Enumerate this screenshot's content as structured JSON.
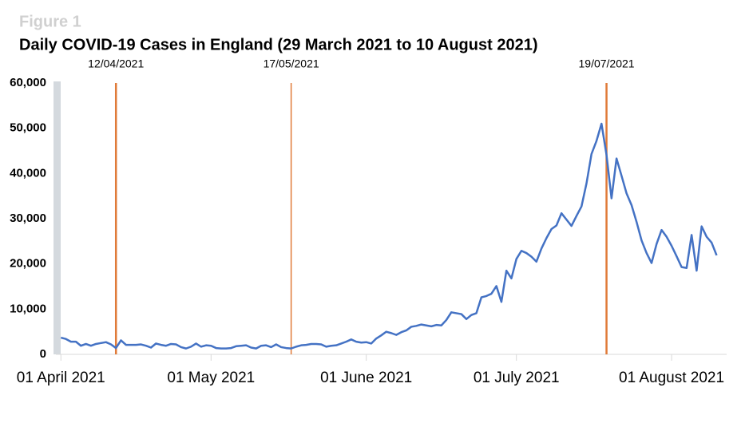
{
  "figure_label": "Figure 1",
  "chart_data": {
    "type": "line",
    "title": "Daily COVID-19 Cases in England (29 March 2021 to 10 August 2021)",
    "start": "2021-04-01",
    "series": [
      {
        "name": "Daily cases",
        "color": "#4472c4",
        "values": [
          3700,
          3400,
          2800,
          2800,
          1900,
          2300,
          1900,
          2300,
          2500,
          2700,
          2200,
          1400,
          3100,
          2100,
          2100,
          2100,
          2200,
          1900,
          1500,
          2400,
          2100,
          1900,
          2300,
          2200,
          1600,
          1300,
          1700,
          2400,
          1700,
          2000,
          1900,
          1400,
          1300,
          1300,
          1400,
          1800,
          1900,
          2000,
          1500,
          1300,
          1900,
          2000,
          1600,
          2200,
          1600,
          1400,
          1300,
          1700,
          2000,
          2100,
          2300,
          2300,
          2200,
          1700,
          1900,
          2000,
          2400,
          2800,
          3300,
          2800,
          2600,
          2700,
          2400,
          3500,
          4200,
          5000,
          4700,
          4300,
          4900,
          5300,
          6100,
          6300,
          6600,
          6400,
          6200,
          6500,
          6400,
          7600,
          9300,
          9100,
          8900,
          7800,
          8700,
          9100,
          12600,
          12900,
          13400,
          15100,
          11600,
          18500,
          16800,
          21100,
          22900,
          22400,
          21600,
          20500,
          23400,
          25700,
          27700,
          28500,
          31200,
          29800,
          28400,
          30600,
          32700,
          37800,
          44300,
          47200,
          51000,
          44100,
          34500,
          43300,
          39500,
          35600,
          33000,
          29300,
          25200,
          22400,
          20200,
          24400,
          27500,
          26000,
          24000,
          21700,
          19300,
          19100,
          26400,
          18500,
          28300,
          26000,
          24700,
          21900
        ]
      }
    ],
    "xlim": [
      "2021-03-31",
      "2021-08-12"
    ],
    "xticks": [
      {
        "value": "2021-04-01",
        "label": "01 April 2021"
      },
      {
        "value": "2021-05-01",
        "label": "01 May 2021"
      },
      {
        "value": "2021-06-01",
        "label": "01 June 2021"
      },
      {
        "value": "2021-07-01",
        "label": "01 July 2021"
      },
      {
        "value": "2021-08-01",
        "label": "01 August 2021"
      }
    ],
    "ylim": [
      0,
      60000
    ],
    "yticks": [
      0,
      {
        "value": 10000,
        "label": "10,000"
      },
      {
        "value": 20000,
        "label": "20,000"
      },
      {
        "value": 30000,
        "label": "30,000"
      },
      {
        "value": 40000,
        "label": "40,000"
      },
      {
        "value": 50000,
        "label": "50,000"
      },
      {
        "value": 60000,
        "label": "60,000"
      }
    ],
    "annotations": [
      {
        "x": "2021-04-12",
        "label": "12/04/2021",
        "color": "#e07b39"
      },
      {
        "x": "2021-05-17",
        "label": "17/05/2021",
        "color": "#e07b39"
      },
      {
        "x": "2021-07-19",
        "label": "19/07/2021",
        "color": "#e07b39"
      }
    ]
  }
}
